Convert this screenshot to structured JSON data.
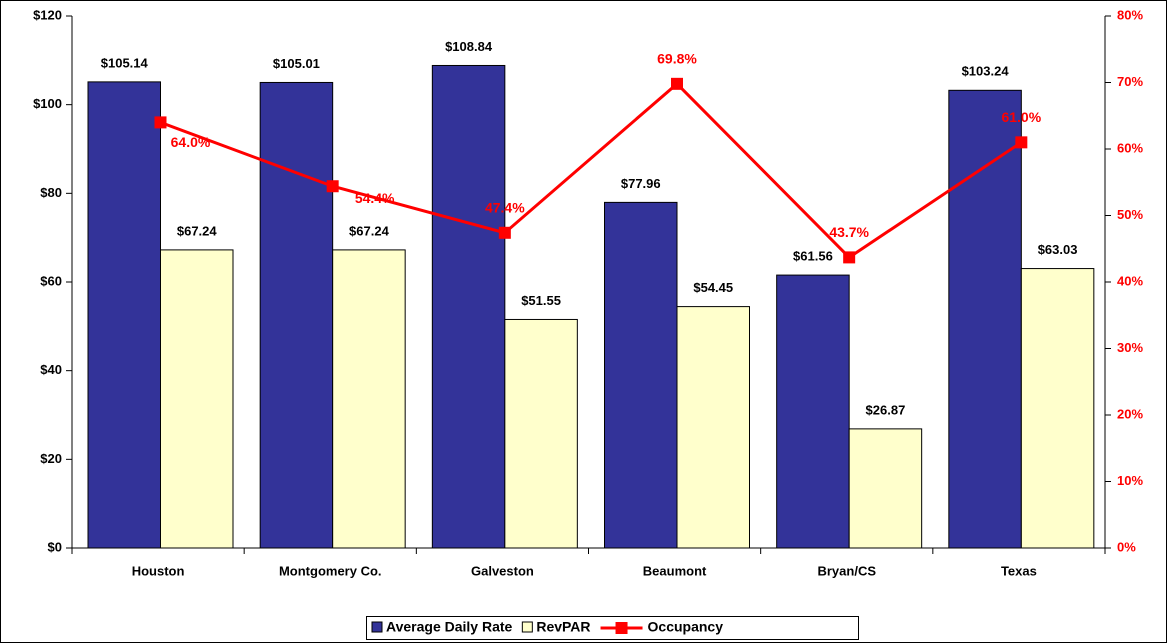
{
  "chart_data": {
    "type": "bar",
    "categories": [
      "Houston",
      "Montgomery Co.",
      "Galveston",
      "Beaumont",
      "Bryan/CS",
      "Texas"
    ],
    "series": [
      {
        "name": "Average Daily Rate",
        "color": "#333399",
        "values": [
          105.14,
          105.01,
          108.84,
          77.96,
          61.56,
          103.24
        ],
        "value_labels": [
          "$105.14",
          "$105.01",
          "$108.84",
          "$77.96",
          "$61.56",
          "$103.24"
        ]
      },
      {
        "name": "RevPAR",
        "color": "#FFFFCC",
        "values": [
          67.24,
          67.24,
          51.55,
          54.45,
          26.87,
          63.03
        ],
        "value_labels": [
          "$67.24",
          "$67.24",
          "$51.55",
          "$54.45",
          "$26.87",
          "$63.03"
        ]
      },
      {
        "name": "Occupancy",
        "color": "#FF0000",
        "type": "line",
        "axis": "y2",
        "values": [
          64.0,
          54.4,
          47.4,
          69.8,
          43.7,
          61.0
        ],
        "value_labels": [
          "64.0%",
          "54.4%",
          "47.4%",
          "69.8%",
          "43.7%",
          "61.0%"
        ]
      }
    ],
    "ylim": [
      0,
      120
    ],
    "yticks": [
      {
        "value": 0,
        "label": "$0"
      },
      {
        "value": 20,
        "label": "$20"
      },
      {
        "value": 40,
        "label": "$40"
      },
      {
        "value": 60,
        "label": "$60"
      },
      {
        "value": 80,
        "label": "$80"
      },
      {
        "value": 100,
        "label": "$100"
      },
      {
        "value": 120,
        "label": "$120"
      }
    ],
    "y2lim": [
      0,
      80
    ],
    "y2ticks": [
      {
        "value": 0,
        "label": "0%"
      },
      {
        "value": 10,
        "label": "10%"
      },
      {
        "value": 20,
        "label": "20%"
      },
      {
        "value": 30,
        "label": "30%"
      },
      {
        "value": 40,
        "label": "40%"
      },
      {
        "value": 50,
        "label": "50%"
      },
      {
        "value": 60,
        "label": "60%"
      },
      {
        "value": 70,
        "label": "70%"
      },
      {
        "value": 80,
        "label": "80%"
      }
    ],
    "legend": "bottom"
  }
}
